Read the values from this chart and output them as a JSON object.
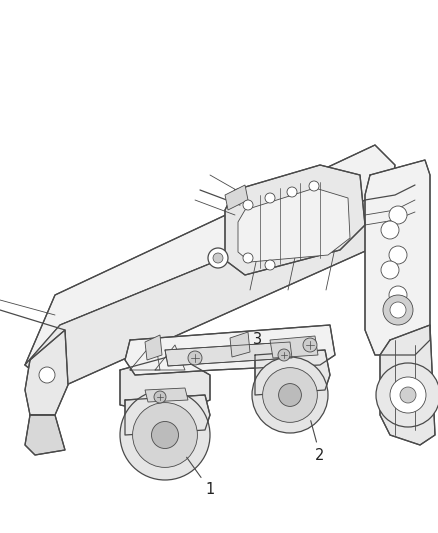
{
  "background_color": "#ffffff",
  "line_color": "#4a4a4a",
  "label_color": "#222222",
  "fig_width": 4.38,
  "fig_height": 5.33,
  "dpi": 100,
  "fill_light": "#f2f2f2",
  "fill_mid": "#e8e8e8",
  "fill_dark": "#d8d8d8",
  "fill_shadow": "#c8c8c8"
}
